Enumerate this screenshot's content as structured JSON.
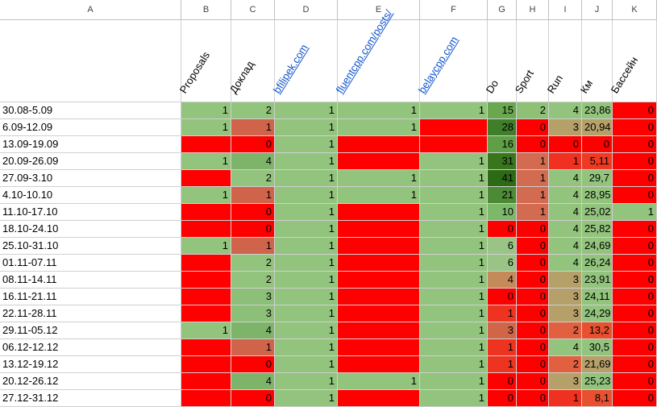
{
  "columns": [
    "A",
    "B",
    "C",
    "D",
    "E",
    "F",
    "G",
    "H",
    "I",
    "J",
    "K"
  ],
  "header_row": [
    null,
    "Proposals",
    "Доклад",
    "bfilipek.com",
    "fluentcpp.com/posts/",
    "belaycpp.com",
    "Do",
    "Sport",
    "Run",
    "Км",
    "Бассейн"
  ],
  "rows": [
    [
      "30.08-5.09",
      1,
      2,
      1,
      1,
      1,
      15,
      2,
      4,
      "23,86",
      0
    ],
    [
      "6.09-12.09",
      1,
      1,
      1,
      1,
      null,
      28,
      0,
      3,
      "20,94",
      0
    ],
    [
      "13.09-19.09",
      null,
      0,
      1,
      null,
      null,
      16,
      0,
      0,
      0,
      0
    ],
    [
      "20.09-26.09",
      1,
      4,
      1,
      null,
      1,
      31,
      1,
      1,
      "5,11",
      0
    ],
    [
      "27.09-3.10",
      null,
      2,
      1,
      1,
      1,
      41,
      1,
      4,
      "29,7",
      0
    ],
    [
      "4.10-10.10",
      1,
      1,
      1,
      1,
      1,
      21,
      1,
      4,
      "28,95",
      0
    ],
    [
      "11.10-17.10",
      null,
      0,
      1,
      null,
      1,
      10,
      1,
      4,
      "25,02",
      1
    ],
    [
      "18.10-24.10",
      null,
      0,
      1,
      null,
      1,
      0,
      0,
      4,
      "25,82",
      0
    ],
    [
      "25.10-31.10",
      1,
      1,
      1,
      null,
      1,
      6,
      0,
      4,
      "24,69",
      0
    ],
    [
      "01.11-07.11",
      null,
      2,
      1,
      null,
      1,
      6,
      0,
      4,
      "26,24",
      0
    ],
    [
      "08.11-14.11",
      null,
      2,
      1,
      null,
      1,
      4,
      0,
      3,
      "23,91",
      0
    ],
    [
      "16.11-21.11",
      null,
      3,
      1,
      null,
      1,
      0,
      0,
      3,
      "24,11",
      0
    ],
    [
      "22.11-28.11",
      null,
      3,
      1,
      null,
      1,
      1,
      0,
      3,
      "24,29",
      0
    ],
    [
      "29.11-05.12",
      1,
      4,
      1,
      null,
      1,
      3,
      0,
      2,
      "13,2",
      0
    ],
    [
      "06.12-12.12",
      null,
      1,
      1,
      null,
      1,
      1,
      0,
      4,
      "30,5",
      0
    ],
    [
      "13.12-19.12",
      null,
      0,
      1,
      null,
      1,
      1,
      0,
      2,
      "21,69",
      0
    ],
    [
      "20.12-26.12",
      null,
      4,
      1,
      1,
      1,
      0,
      0,
      3,
      "25,23",
      0
    ],
    [
      "27.12-31.12",
      null,
      0,
      1,
      null,
      1,
      0,
      0,
      1,
      "8,1",
      0
    ]
  ],
  "colors": [
    [
      "#93c47d",
      "#93c47d",
      "#93c47d",
      "#93c47d",
      "#93c47d",
      "#6aa84f",
      "#8ec176",
      "#93c47d",
      "#93c47d",
      "#ff0000"
    ],
    [
      "#93c47d",
      "#cf644b",
      "#93c47d",
      "#93c47d",
      "#ff0000",
      "#3f7f2a",
      "#ff0000",
      "#b5a06a",
      "#b5a06a",
      "#ff0000"
    ],
    [
      "#ff0000",
      "#ff0000",
      "#93c47d",
      "#ff0000",
      "#ff0000",
      "#5f9f46",
      "#ff0000",
      "#ff0000",
      "#ff0000",
      "#ff0000"
    ],
    [
      "#93c47d",
      "#7db46a",
      "#93c47d",
      "#ff0000",
      "#93c47d",
      "#38761d",
      "#d26b4f",
      "#f03020",
      "#ee3a22",
      "#ff0000"
    ],
    [
      "#ff0000",
      "#93c47d",
      "#93c47d",
      "#93c47d",
      "#93c47d",
      "#2d6a16",
      "#d26b4f",
      "#93c47d",
      "#93c47d",
      "#ff0000"
    ],
    [
      "#93c47d",
      "#cf644b",
      "#93c47d",
      "#93c47d",
      "#93c47d",
      "#4c8a36",
      "#d26b4f",
      "#93c47d",
      "#93c47d",
      "#ff0000"
    ],
    [
      "#ff0000",
      "#ff0000",
      "#93c47d",
      "#ff0000",
      "#93c47d",
      "#7db86a",
      "#d26b4f",
      "#93c47d",
      "#93c47d",
      "#93c47d"
    ],
    [
      "#ff0000",
      "#ff0000",
      "#93c47d",
      "#ff0000",
      "#93c47d",
      "#ff0000",
      "#ff0000",
      "#93c47d",
      "#93c47d",
      "#ff0000"
    ],
    [
      "#93c47d",
      "#cf644b",
      "#93c47d",
      "#ff0000",
      "#93c47d",
      "#9ac485",
      "#ff0000",
      "#93c47d",
      "#93c47d",
      "#ff0000"
    ],
    [
      "#ff0000",
      "#93c47d",
      "#93c47d",
      "#ff0000",
      "#93c47d",
      "#9ac485",
      "#ff0000",
      "#93c47d",
      "#93c47d",
      "#ff0000"
    ],
    [
      "#ff0000",
      "#93c47d",
      "#93c47d",
      "#ff0000",
      "#93c47d",
      "#c48a5a",
      "#ff0000",
      "#b5a06a",
      "#93c47d",
      "#ff0000"
    ],
    [
      "#ff0000",
      "#8cc079",
      "#93c47d",
      "#ff0000",
      "#93c47d",
      "#ff0000",
      "#ff0000",
      "#b5a06a",
      "#93c47d",
      "#ff0000"
    ],
    [
      "#ff0000",
      "#8cc079",
      "#93c47d",
      "#ff0000",
      "#93c47d",
      "#ee3320",
      "#ff0000",
      "#b5a06a",
      "#93c47d",
      "#ff0000"
    ],
    [
      "#93c47d",
      "#7db46a",
      "#93c47d",
      "#ff0000",
      "#93c47d",
      "#d06548",
      "#ff0000",
      "#e06040",
      "#e8502f",
      "#ff0000"
    ],
    [
      "#ff0000",
      "#cf644b",
      "#93c47d",
      "#ff0000",
      "#93c47d",
      "#ee3320",
      "#ff0000",
      "#93c47d",
      "#93c47d",
      "#ff0000"
    ],
    [
      "#ff0000",
      "#ff0000",
      "#93c47d",
      "#ff0000",
      "#93c47d",
      "#ee3320",
      "#ff0000",
      "#e06040",
      "#b5a06a",
      "#ff0000"
    ],
    [
      "#ff0000",
      "#7db46a",
      "#93c47d",
      "#93c47d",
      "#93c47d",
      "#ff0000",
      "#ff0000",
      "#b5a06a",
      "#93c47d",
      "#ff0000"
    ],
    [
      "#ff0000",
      "#ff0000",
      "#93c47d",
      "#ff0000",
      "#93c47d",
      "#ff0000",
      "#ff0000",
      "#f03020",
      "#e8502f",
      "#ff0000"
    ]
  ]
}
